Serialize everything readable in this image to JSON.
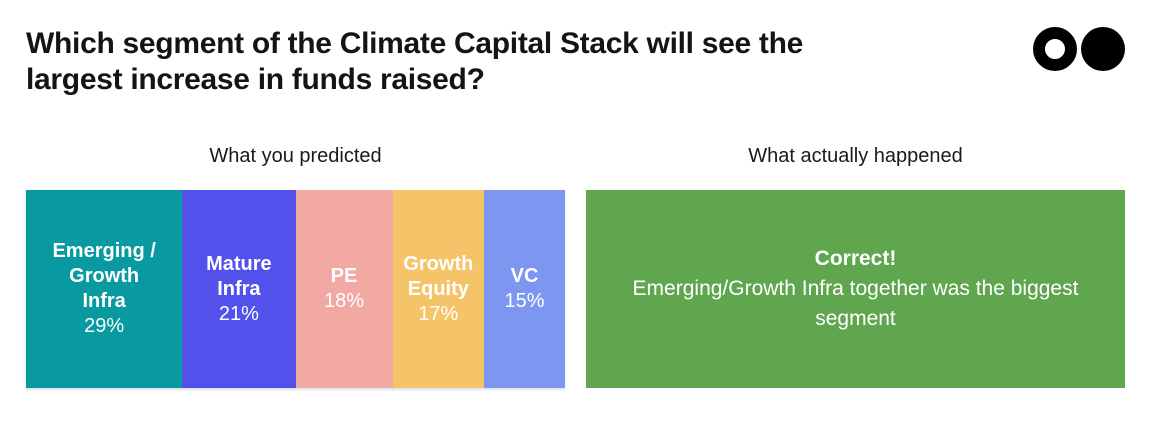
{
  "page": {
    "title": "Which segment of the Climate Capital Stack will see the\nlargest increase in funds raised?"
  },
  "logo": {
    "left_circle": "ring-circle",
    "right_circle": "filled-circle",
    "color": "#000000"
  },
  "panels": {
    "predicted": {
      "header": "What you predicted"
    },
    "actual": {
      "header": "What actually happened",
      "result_title": "Correct!",
      "result_message": "Emerging/Growth Infra together was the biggest\nsegment",
      "color": "#5FA64F",
      "text_color": "#FFFFFF"
    }
  },
  "chart_data": {
    "type": "bar",
    "orientation": "horizontal-stacked",
    "title": "What you predicted",
    "unit": "%",
    "xlim": [
      0,
      100
    ],
    "grid": false,
    "legend": "labels-inside-segments",
    "categories": [
      "Emerging / Growth Infra",
      "Mature Infra",
      "PE",
      "Growth Equity",
      "VC"
    ],
    "values": [
      29,
      21,
      18,
      17,
      15
    ],
    "segments": [
      {
        "name": "Emerging / Growth Infra",
        "label": "Emerging /\nGrowth\nInfra",
        "value": 29,
        "display": "29%",
        "color": "#089AA0"
      },
      {
        "name": "Mature Infra",
        "label": "Mature\nInfra",
        "value": 21,
        "display": "21%",
        "color": "#5351EC"
      },
      {
        "name": "PE",
        "label": "PE",
        "value": 18,
        "display": "18%",
        "color": "#F2A8A3"
      },
      {
        "name": "Growth Equity",
        "label": "Growth\nEquity",
        "value": 17,
        "display": "17%",
        "color": "#F5C368"
      },
      {
        "name": "VC",
        "label": "VC",
        "value": 15,
        "display": "15%",
        "color": "#7D97F0"
      }
    ]
  }
}
